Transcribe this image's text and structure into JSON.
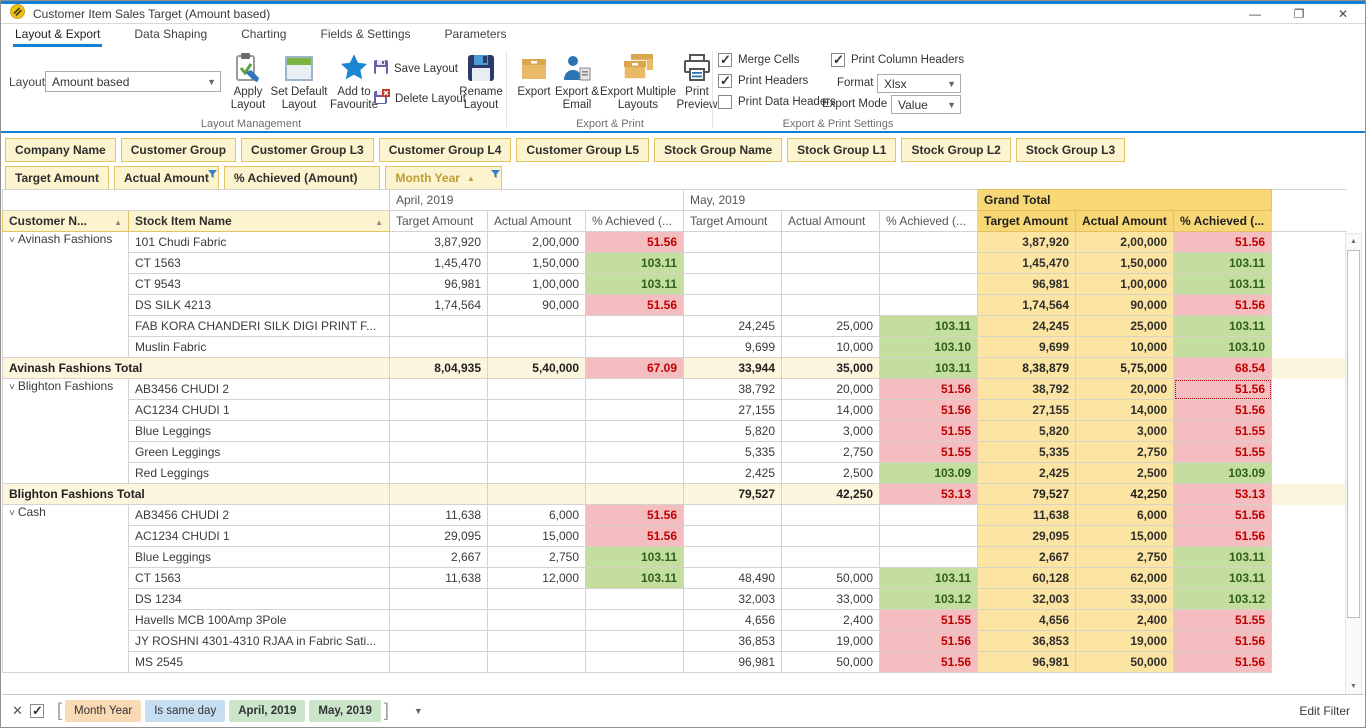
{
  "window": {
    "title": "Customer Item Sales Target (Amount based)",
    "controls": [
      {
        "name": "minimize",
        "glyph": "—"
      },
      {
        "name": "restore",
        "glyph": "❐"
      },
      {
        "name": "close",
        "glyph": "✕"
      }
    ]
  },
  "ribbon": {
    "tabs": [
      {
        "label": "Layout & Export",
        "active": true
      },
      {
        "label": "Data Shaping",
        "active": false
      },
      {
        "label": "Charting",
        "active": false
      },
      {
        "label": "Fields & Settings",
        "active": false
      },
      {
        "label": "Parameters",
        "active": false
      }
    ],
    "layout": {
      "label": "Layout",
      "value": "Amount based"
    },
    "layout_buttons": [
      {
        "name": "apply-layout",
        "label": "Apply Layout",
        "icon": "apply-layout-icon"
      },
      {
        "name": "set-default-layout",
        "label": "Set Default Layout",
        "icon": "set-default-layout-icon"
      },
      {
        "name": "add-to-favourite",
        "label": "Add to Favourite",
        "icon": "favourite-icon"
      }
    ],
    "small_buttons": [
      {
        "name": "save-layout",
        "label": "Save Layout",
        "icon": "save-layout-icon"
      },
      {
        "name": "delete-layout",
        "label": "Delete Layout",
        "icon": "delete-layout-icon"
      }
    ],
    "rename_button": {
      "name": "rename-layout",
      "label": "Rename Layout",
      "icon": "rename-layout-icon"
    },
    "export_buttons": [
      {
        "name": "export",
        "label": "Export",
        "icon": "export-icon"
      },
      {
        "name": "export-email",
        "label": "Export & Email",
        "icon": "export-email-icon"
      },
      {
        "name": "export-multiple-layouts",
        "label": "Export Multiple Layouts",
        "icon": "export-multiple-icon"
      },
      {
        "name": "print-preview",
        "label": "Print Preview",
        "icon": "print-preview-icon"
      }
    ],
    "settings": {
      "checkboxes": [
        {
          "label": "Merge Cells",
          "checked": true
        },
        {
          "label": "Print Headers",
          "checked": true
        },
        {
          "label": "Print Data Headers",
          "checked": false
        },
        {
          "label": "Print Column Headers",
          "checked": true
        }
      ],
      "format_label": "Format",
      "format_value": "Xlsx",
      "export_mode_label": "Export Mode",
      "export_mode_value": "Value"
    },
    "group_captions": [
      "Layout Management",
      "Export & Print",
      "Export & Print Settings"
    ]
  },
  "fields": {
    "row1": [
      "Company Name",
      "Customer Group",
      "Customer Group L3",
      "Customer Group L4",
      "Customer Group L5",
      "Stock Group Name",
      "Stock Group L1",
      "Stock Group L2",
      "Stock Group L3"
    ],
    "row2": [
      {
        "label": "Target Amount",
        "sort": "",
        "filter": false,
        "gold": false
      },
      {
        "label": "Actual Amount",
        "sort": "",
        "filter": true,
        "gold": false
      },
      {
        "label": "% Achieved (Amount)",
        "sort": "",
        "filter": false,
        "gold": false
      },
      {
        "label": "Month Year",
        "sort": "asc",
        "filter": true,
        "gold": true
      }
    ]
  },
  "grid": {
    "row_headers": [
      {
        "label": "Customer N...",
        "sort": "asc"
      },
      {
        "label": "Stock Item Name",
        "sort": "asc"
      }
    ],
    "col_groups": [
      {
        "label": "April, 2019",
        "grand": false
      },
      {
        "label": "May, 2019",
        "grand": false
      },
      {
        "label": "Grand Total",
        "grand": true
      }
    ],
    "measures": [
      "Target Amount",
      "Actual Amount",
      "% Achieved (..."
    ],
    "groups": [
      {
        "customer": "Avinash Fashions",
        "rows": [
          {
            "item": "101 Chudi Fabric",
            "values": [
              "3,87,920",
              "2,00,000",
              "51.56",
              "",
              "",
              "",
              "3,87,920",
              "2,00,000",
              "51.56"
            ],
            "classes": [
              "",
              "",
              "red",
              "",
              "",
              "",
              "",
              "",
              "red"
            ]
          },
          {
            "item": "CT 1563",
            "values": [
              "1,45,470",
              "1,50,000",
              "103.11",
              "",
              "",
              "",
              "1,45,470",
              "1,50,000",
              "103.11"
            ],
            "classes": [
              "",
              "",
              "green",
              "",
              "",
              "",
              "",
              "",
              "green"
            ]
          },
          {
            "item": "CT 9543",
            "values": [
              "96,981",
              "1,00,000",
              "103.11",
              "",
              "",
              "",
              "96,981",
              "1,00,000",
              "103.11"
            ],
            "classes": [
              "",
              "",
              "green",
              "",
              "",
              "",
              "",
              "",
              "green"
            ]
          },
          {
            "item": "DS SILK 4213",
            "values": [
              "1,74,564",
              "90,000",
              "51.56",
              "",
              "",
              "",
              "1,74,564",
              "90,000",
              "51.56"
            ],
            "classes": [
              "",
              "",
              "red",
              "",
              "",
              "",
              "",
              "",
              "red"
            ]
          },
          {
            "item": "FAB KORA CHANDERI SILK DIGI PRINT F...",
            "values": [
              "",
              "",
              "",
              "24,245",
              "25,000",
              "103.11",
              "24,245",
              "25,000",
              "103.11"
            ],
            "classes": [
              "",
              "",
              "",
              "",
              "",
              "green",
              "",
              "",
              "green"
            ]
          },
          {
            "item": "Muslin Fabric",
            "values": [
              "",
              "",
              "",
              "9,699",
              "10,000",
              "103.10",
              "9,699",
              "10,000",
              "103.10"
            ],
            "classes": [
              "",
              "",
              "",
              "",
              "",
              "green",
              "",
              "",
              "green"
            ]
          }
        ],
        "total": {
          "label": "Avinash Fashions Total",
          "values": [
            "8,04,935",
            "5,40,000",
            "67.09",
            "33,944",
            "35,000",
            "103.11",
            "8,38,879",
            "5,75,000",
            "68.54"
          ],
          "classes": [
            "",
            "",
            "red",
            "",
            "",
            "green",
            "",
            "",
            "red"
          ]
        }
      },
      {
        "customer": "Blighton Fashions",
        "rows": [
          {
            "item": "AB3456 CHUDI 2",
            "values": [
              "",
              "",
              "",
              "38,792",
              "20,000",
              "51.56",
              "38,792",
              "20,000",
              "51.56"
            ],
            "classes": [
              "",
              "",
              "",
              "",
              "",
              "red",
              "",
              "",
              "red"
            ],
            "selected": 8
          },
          {
            "item": "AC1234 CHUDI 1",
            "values": [
              "",
              "",
              "",
              "27,155",
              "14,000",
              "51.56",
              "27,155",
              "14,000",
              "51.56"
            ],
            "classes": [
              "",
              "",
              "",
              "",
              "",
              "red",
              "",
              "",
              "red"
            ]
          },
          {
            "item": "Blue Leggings",
            "values": [
              "",
              "",
              "",
              "5,820",
              "3,000",
              "51.55",
              "5,820",
              "3,000",
              "51.55"
            ],
            "classes": [
              "",
              "",
              "",
              "",
              "",
              "red",
              "",
              "",
              "red"
            ]
          },
          {
            "item": "Green Leggings",
            "values": [
              "",
              "",
              "",
              "5,335",
              "2,750",
              "51.55",
              "5,335",
              "2,750",
              "51.55"
            ],
            "classes": [
              "",
              "",
              "",
              "",
              "",
              "red",
              "",
              "",
              "red"
            ]
          },
          {
            "item": "Red Leggings",
            "values": [
              "",
              "",
              "",
              "2,425",
              "2,500",
              "103.09",
              "2,425",
              "2,500",
              "103.09"
            ],
            "classes": [
              "",
              "",
              "",
              "",
              "",
              "green",
              "",
              "",
              "green"
            ]
          }
        ],
        "total": {
          "label": "Blighton Fashions Total",
          "values": [
            "",
            "",
            "",
            "79,527",
            "42,250",
            "53.13",
            "79,527",
            "42,250",
            "53.13"
          ],
          "classes": [
            "",
            "",
            "",
            "",
            "",
            "red",
            "",
            "",
            "red"
          ]
        }
      },
      {
        "customer": "Cash",
        "rows": [
          {
            "item": "AB3456 CHUDI 2",
            "values": [
              "11,638",
              "6,000",
              "51.56",
              "",
              "",
              "",
              "11,638",
              "6,000",
              "51.56"
            ],
            "classes": [
              "",
              "",
              "red",
              "",
              "",
              "",
              "",
              "",
              "red"
            ]
          },
          {
            "item": "AC1234 CHUDI 1",
            "values": [
              "29,095",
              "15,000",
              "51.56",
              "",
              "",
              "",
              "29,095",
              "15,000",
              "51.56"
            ],
            "classes": [
              "",
              "",
              "red",
              "",
              "",
              "",
              "",
              "",
              "red"
            ]
          },
          {
            "item": "Blue Leggings",
            "values": [
              "2,667",
              "2,750",
              "103.11",
              "",
              "",
              "",
              "2,667",
              "2,750",
              "103.11"
            ],
            "classes": [
              "",
              "",
              "green",
              "",
              "",
              "",
              "",
              "",
              "green"
            ]
          },
          {
            "item": "CT 1563",
            "values": [
              "11,638",
              "12,000",
              "103.11",
              "48,490",
              "50,000",
              "103.11",
              "60,128",
              "62,000",
              "103.11"
            ],
            "classes": [
              "",
              "",
              "green",
              "",
              "",
              "green",
              "",
              "",
              "green"
            ]
          },
          {
            "item": "DS 1234",
            "values": [
              "",
              "",
              "",
              "32,003",
              "33,000",
              "103.12",
              "32,003",
              "33,000",
              "103.12"
            ],
            "classes": [
              "",
              "",
              "",
              "",
              "",
              "green",
              "",
              "",
              "green"
            ]
          },
          {
            "item": "Havells MCB 100Amp 3Pole",
            "values": [
              "",
              "",
              "",
              "4,656",
              "2,400",
              "51.55",
              "4,656",
              "2,400",
              "51.55"
            ],
            "classes": [
              "",
              "",
              "",
              "",
              "",
              "red",
              "",
              "",
              "red"
            ]
          },
          {
            "item": "JY ROSHNI 4301-4310 RJAA in Fabric Sati...",
            "values": [
              "",
              "",
              "",
              "36,853",
              "19,000",
              "51.56",
              "36,853",
              "19,000",
              "51.56"
            ],
            "classes": [
              "",
              "",
              "",
              "",
              "",
              "red",
              "",
              "",
              "red"
            ]
          },
          {
            "item": "MS 2545",
            "values": [
              "",
              "",
              "",
              "96,981",
              "50,000",
              "51.56",
              "96,981",
              "50,000",
              "51.56"
            ],
            "classes": [
              "",
              "",
              "",
              "",
              "",
              "red",
              "",
              "",
              "red"
            ]
          }
        ],
        "total": null
      }
    ]
  },
  "filterbar": {
    "checked": true,
    "chips": [
      {
        "label": "Month Year",
        "color": "peach"
      },
      {
        "label": "Is same day",
        "color": "blue"
      },
      {
        "label": "April, 2019",
        "color": "green"
      },
      {
        "label": "May, 2019",
        "color": "green"
      }
    ],
    "edit_filter": "Edit Filter"
  },
  "colors": {
    "accent_blue": "#1580D3",
    "chip_bg": "#FCF3CF",
    "chip_border": "#E3C363",
    "grand_header_bg": "#F8D776",
    "grand_cell_bg": "#FCE4A2",
    "total_row_bg": "#FCF6DE",
    "achieved_green_bg": "#C3DE9E",
    "achieved_green_text": "#2F601A",
    "achieved_red_bg": "#F4BEC1",
    "achieved_red_text": "#C00000"
  }
}
